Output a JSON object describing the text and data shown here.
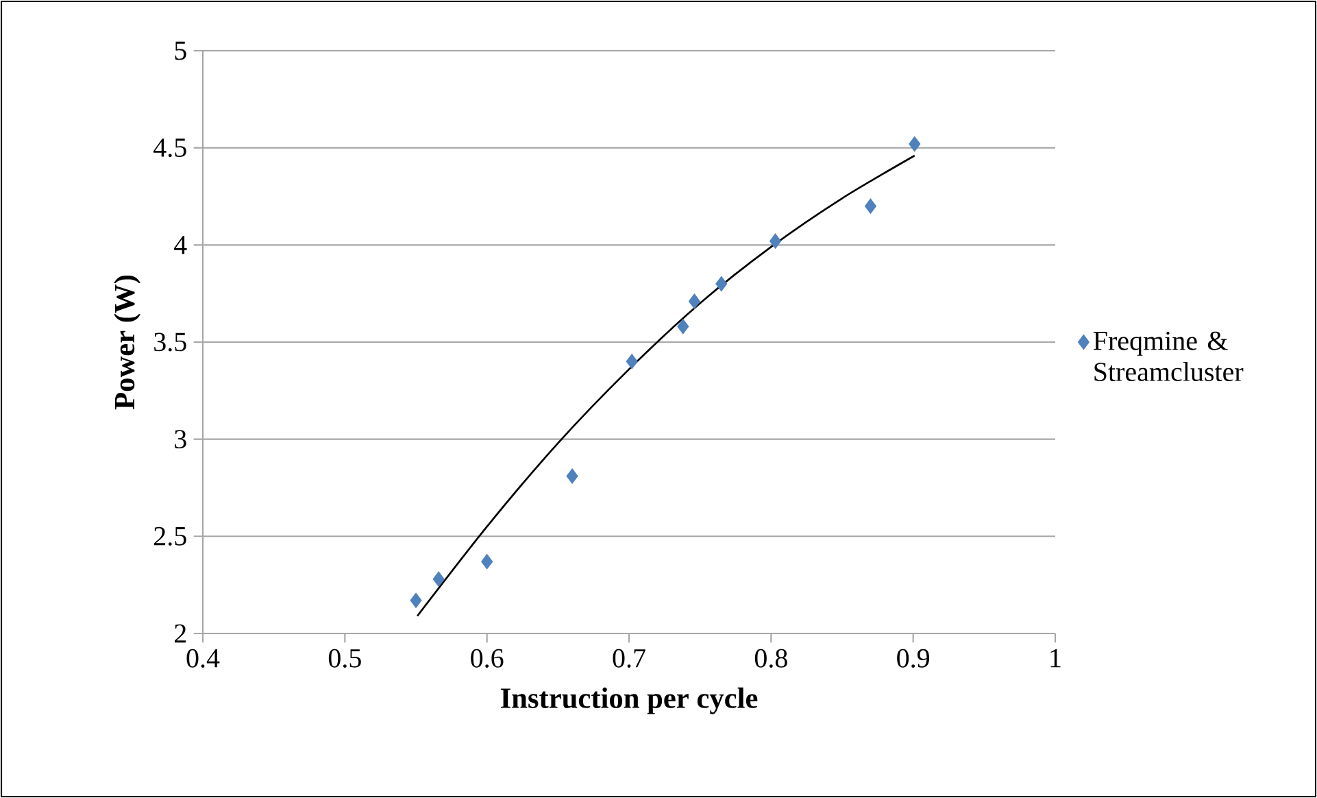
{
  "chart_data": {
    "type": "scatter",
    "xlabel": "Instruction per cycle",
    "ylabel": "Power (W)",
    "xlim": [
      0.4,
      1
    ],
    "ylim": [
      2,
      5
    ],
    "xticks": [
      0.4,
      0.5,
      0.6,
      0.7,
      0.8,
      0.9,
      1
    ],
    "yticks": [
      2,
      2.5,
      3,
      3.5,
      4,
      4.5,
      5
    ],
    "grid": "y",
    "legend": "right",
    "series": [
      {
        "name": "Freqmine & Streamcluster",
        "marker": "diamond",
        "color": "#4f81bd",
        "x": [
          0.55,
          0.566,
          0.6,
          0.66,
          0.702,
          0.738,
          0.746,
          0.765,
          0.803,
          0.87,
          0.901
        ],
        "values": [
          2.17,
          2.28,
          2.37,
          2.81,
          3.4,
          3.58,
          3.71,
          3.8,
          4.02,
          4.2,
          4.52
        ]
      },
      {
        "type": "line",
        "marker": "none",
        "color": "#000000",
        "x": [
          0.551,
          0.6,
          0.65,
          0.7,
          0.75,
          0.8,
          0.85,
          0.901
        ],
        "values": [
          2.09,
          2.55,
          2.98,
          3.36,
          3.7,
          3.99,
          4.24,
          4.46
        ]
      }
    ]
  }
}
